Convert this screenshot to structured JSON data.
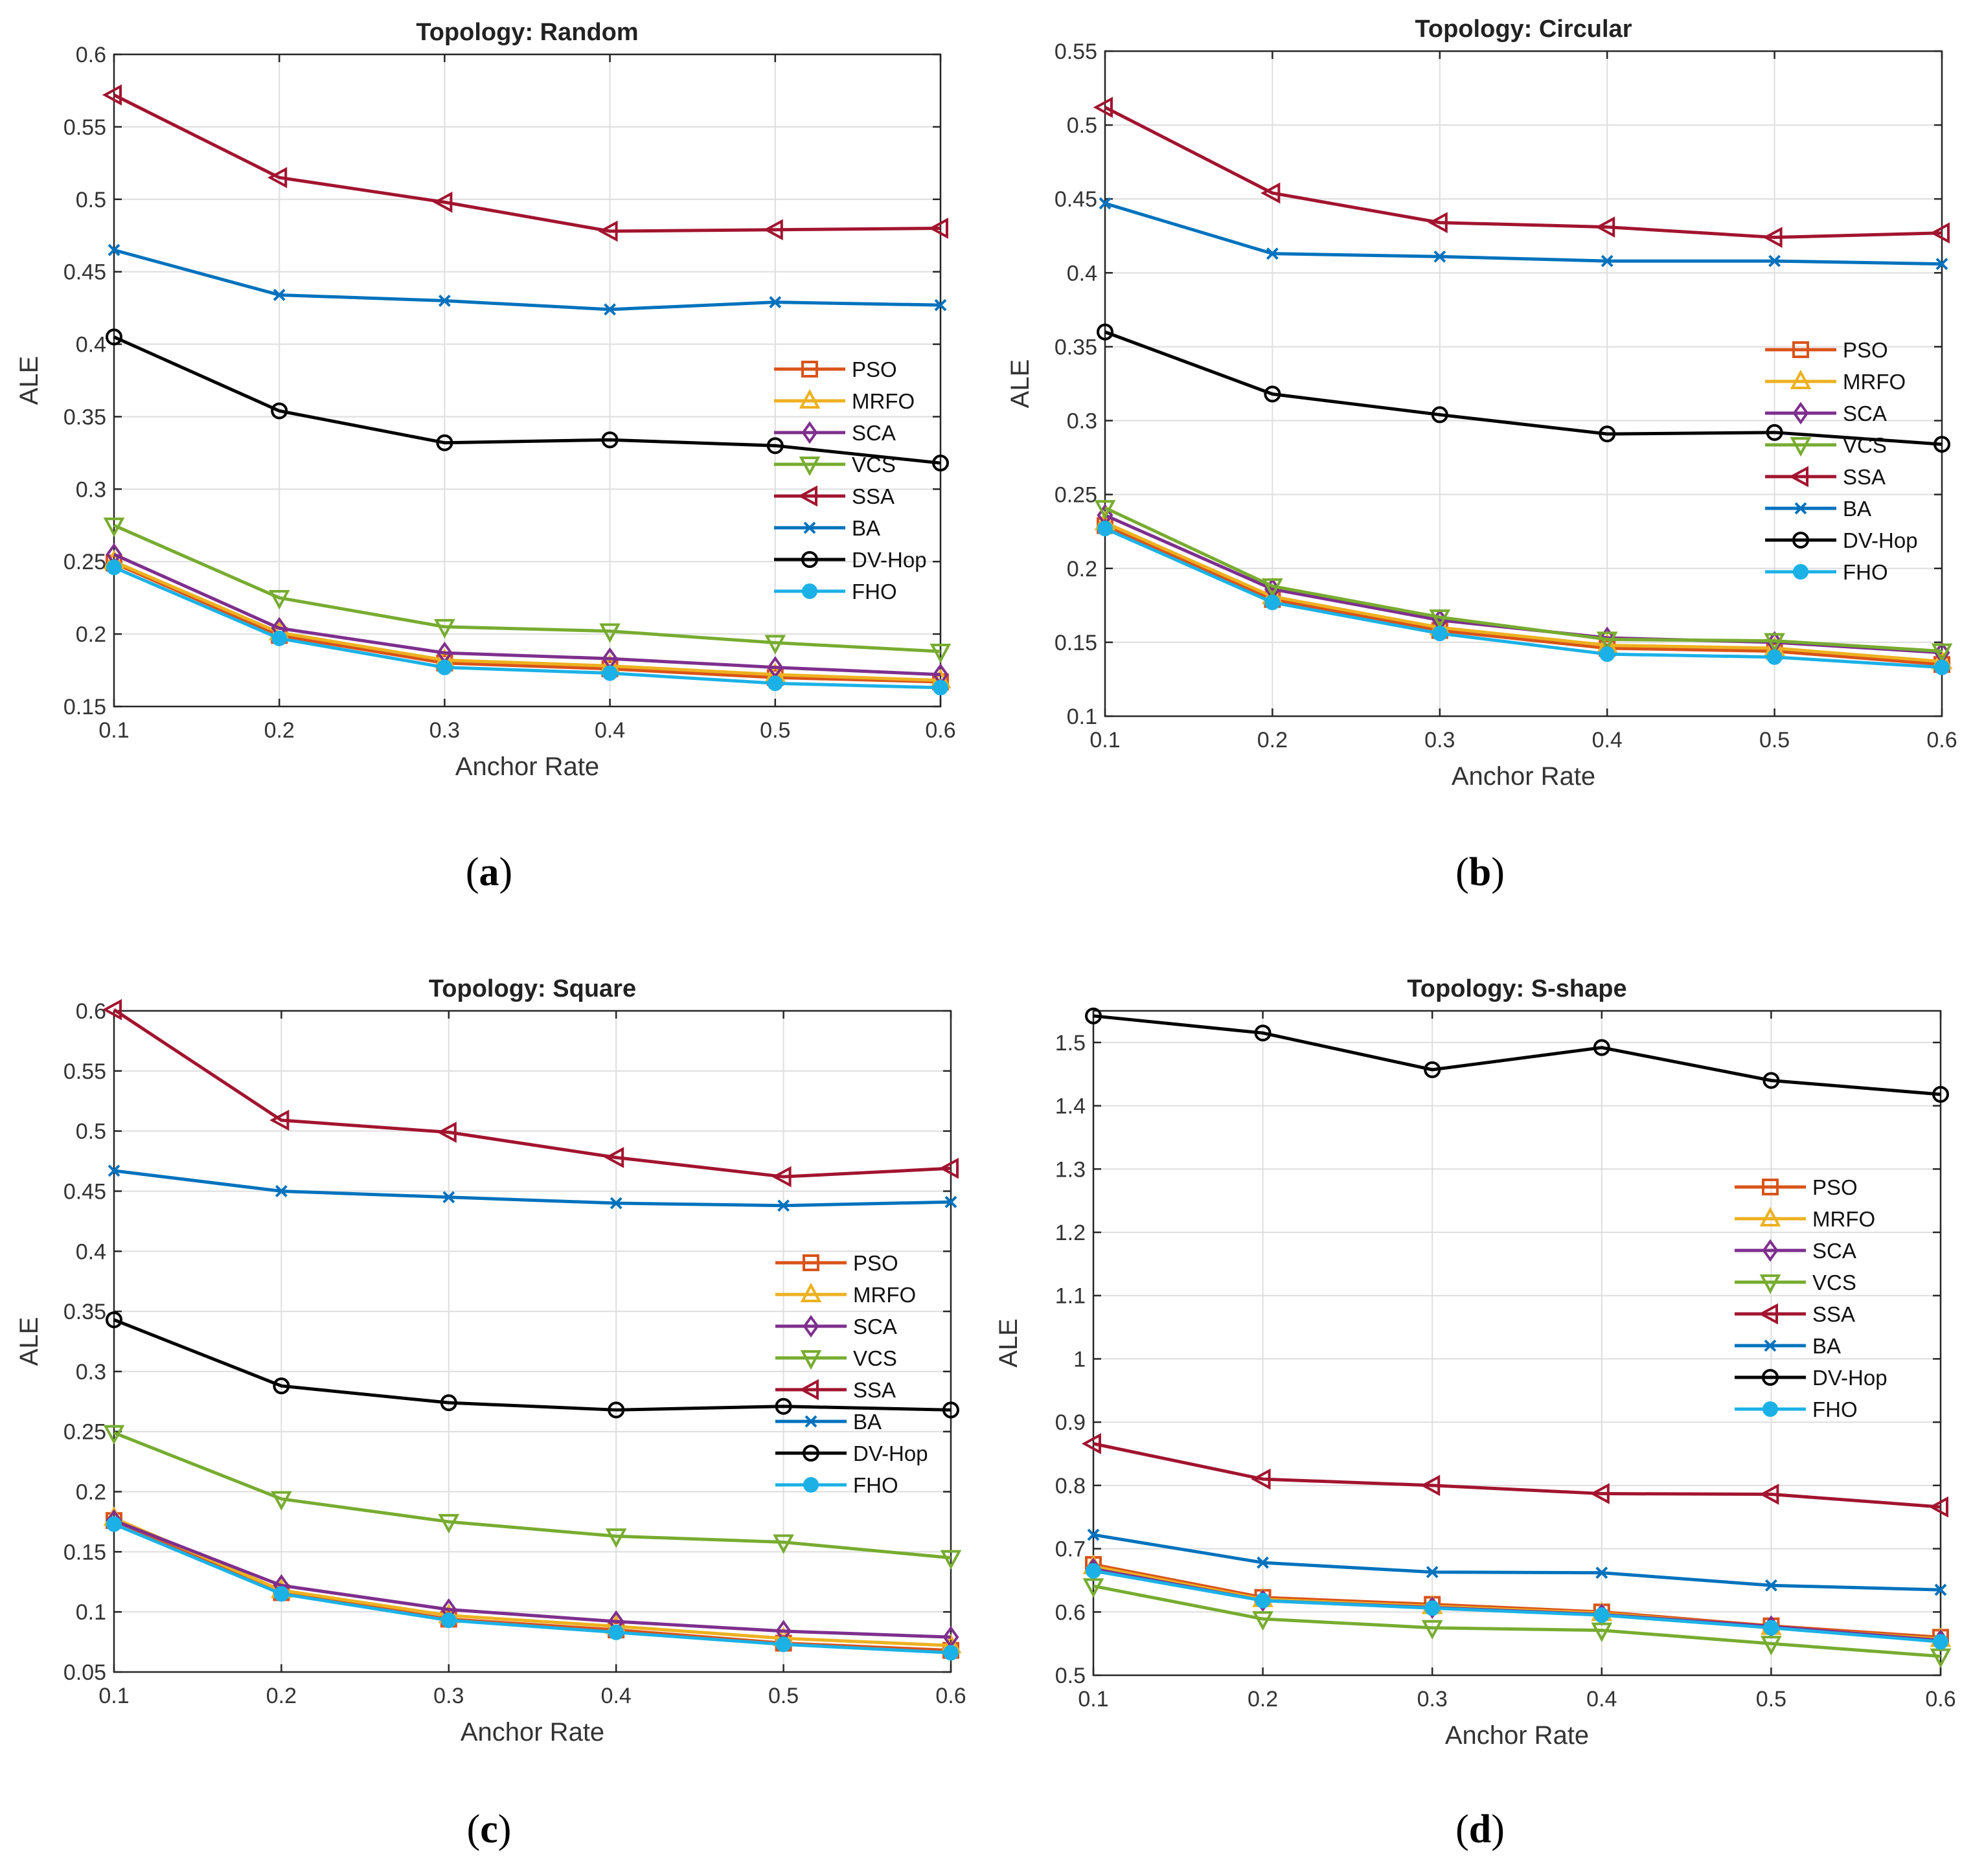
{
  "figure": {
    "subplot_labels": [
      "a",
      "b",
      "c",
      "d"
    ]
  },
  "chart_data": [
    {
      "type": "line",
      "title": "Topology: Random",
      "xlabel": "Anchor Rate",
      "ylabel": "ALE",
      "x": [
        0.1,
        0.2,
        0.3,
        0.4,
        0.5,
        0.6
      ],
      "xticks": [
        "0.1",
        "0.2",
        "0.3",
        "0.4",
        "0.5",
        "0.6"
      ],
      "xlim": [
        0.1,
        0.6
      ],
      "ylim": [
        0.15,
        0.6
      ],
      "yticks": [
        "0.15",
        "0.2",
        "0.25",
        "0.3",
        "0.35",
        "0.4",
        "0.45",
        "0.5",
        "0.55",
        "0.6"
      ],
      "grid": true,
      "legend_position": "center-right",
      "series": [
        {
          "name": "PSO",
          "color": "#D95319",
          "marker": "square",
          "values": [
            0.249,
            0.199,
            0.18,
            0.176,
            0.17,
            0.167
          ]
        },
        {
          "name": "MRFO",
          "color": "#EDB120",
          "marker": "triangle-up",
          "values": [
            0.25,
            0.201,
            0.182,
            0.178,
            0.172,
            0.168
          ]
        },
        {
          "name": "SCA",
          "color": "#7E2F8E",
          "marker": "diamond",
          "values": [
            0.255,
            0.204,
            0.187,
            0.183,
            0.177,
            0.172
          ]
        },
        {
          "name": "VCS",
          "color": "#77AC30",
          "marker": "triangle-down",
          "values": [
            0.275,
            0.225,
            0.205,
            0.202,
            0.194,
            0.188
          ]
        },
        {
          "name": "SSA",
          "color": "#A2142F",
          "marker": "triangle-left",
          "values": [
            0.572,
            0.515,
            0.498,
            0.478,
            0.479,
            0.48
          ]
        },
        {
          "name": "BA",
          "color": "#0072BD",
          "marker": "x",
          "values": [
            0.465,
            0.434,
            0.43,
            0.424,
            0.429,
            0.427
          ]
        },
        {
          "name": "DV-Hop",
          "color": "#000000",
          "marker": "circle",
          "values": [
            0.405,
            0.354,
            0.332,
            0.334,
            0.33,
            0.318
          ]
        },
        {
          "name": "FHO",
          "color": "#1BB1E6",
          "marker": "dot",
          "values": [
            0.246,
            0.197,
            0.177,
            0.173,
            0.166,
            0.163
          ]
        }
      ]
    },
    {
      "type": "line",
      "title": "Topology: Circular",
      "xlabel": "Anchor Rate",
      "ylabel": "ALE",
      "x": [
        0.1,
        0.2,
        0.3,
        0.4,
        0.5,
        0.6
      ],
      "xticks": [
        "0.1",
        "0.2",
        "0.3",
        "0.4",
        "0.5",
        "0.6"
      ],
      "xlim": [
        0.1,
        0.6
      ],
      "ylim": [
        0.1,
        0.55
      ],
      "yticks": [
        "0.1",
        "0.15",
        "0.2",
        "0.25",
        "0.3",
        "0.35",
        "0.4",
        "0.45",
        "0.5",
        "0.55"
      ],
      "grid": true,
      "legend_position": "center-right",
      "series": [
        {
          "name": "PSO",
          "color": "#D95319",
          "marker": "square",
          "values": [
            0.229,
            0.179,
            0.158,
            0.146,
            0.144,
            0.135
          ]
        },
        {
          "name": "MRFO",
          "color": "#EDB120",
          "marker": "triangle-up",
          "values": [
            0.231,
            0.181,
            0.16,
            0.148,
            0.146,
            0.137
          ]
        },
        {
          "name": "SCA",
          "color": "#7E2F8E",
          "marker": "diamond",
          "values": [
            0.236,
            0.186,
            0.165,
            0.153,
            0.15,
            0.143
          ]
        },
        {
          "name": "VCS",
          "color": "#77AC30",
          "marker": "triangle-down",
          "values": [
            0.241,
            0.188,
            0.167,
            0.152,
            0.151,
            0.144
          ]
        },
        {
          "name": "SSA",
          "color": "#A2142F",
          "marker": "triangle-left",
          "values": [
            0.512,
            0.454,
            0.434,
            0.431,
            0.424,
            0.427
          ]
        },
        {
          "name": "BA",
          "color": "#0072BD",
          "marker": "x",
          "values": [
            0.447,
            0.413,
            0.411,
            0.408,
            0.408,
            0.406
          ]
        },
        {
          "name": "DV-Hop",
          "color": "#000000",
          "marker": "circle",
          "values": [
            0.36,
            0.318,
            0.304,
            0.291,
            0.292,
            0.284
          ]
        },
        {
          "name": "FHO",
          "color": "#1BB1E6",
          "marker": "dot",
          "values": [
            0.227,
            0.177,
            0.156,
            0.142,
            0.14,
            0.133
          ]
        }
      ]
    },
    {
      "type": "line",
      "title": "Topology: Square",
      "xlabel": "Anchor Rate",
      "ylabel": "ALE",
      "x": [
        0.1,
        0.2,
        0.3,
        0.4,
        0.5,
        0.6
      ],
      "xticks": [
        "0.1",
        "0.2",
        "0.3",
        "0.4",
        "0.5",
        "0.6"
      ],
      "xlim": [
        0.1,
        0.6
      ],
      "ylim": [
        0.05,
        0.6
      ],
      "yticks": [
        "0.05",
        "0.1",
        "0.15",
        "0.2",
        "0.25",
        "0.3",
        "0.35",
        "0.4",
        "0.45",
        "0.5",
        "0.55",
        "0.6"
      ],
      "grid": true,
      "legend_position": "center-right",
      "series": [
        {
          "name": "PSO",
          "color": "#D95319",
          "marker": "square",
          "values": [
            0.176,
            0.116,
            0.094,
            0.085,
            0.074,
            0.068
          ]
        },
        {
          "name": "MRFO",
          "color": "#EDB120",
          "marker": "triangle-up",
          "values": [
            0.178,
            0.118,
            0.097,
            0.088,
            0.078,
            0.072
          ]
        },
        {
          "name": "SCA",
          "color": "#7E2F8E",
          "marker": "diamond",
          "values": [
            0.176,
            0.122,
            0.102,
            0.092,
            0.084,
            0.079
          ]
        },
        {
          "name": "VCS",
          "color": "#77AC30",
          "marker": "triangle-down",
          "values": [
            0.249,
            0.194,
            0.175,
            0.163,
            0.158,
            0.145
          ]
        },
        {
          "name": "SSA",
          "color": "#A2142F",
          "marker": "triangle-left",
          "values": [
            0.601,
            0.509,
            0.499,
            0.478,
            0.462,
            0.469
          ]
        },
        {
          "name": "BA",
          "color": "#0072BD",
          "marker": "x",
          "values": [
            0.467,
            0.45,
            0.445,
            0.44,
            0.438,
            0.441
          ]
        },
        {
          "name": "DV-Hop",
          "color": "#000000",
          "marker": "circle",
          "values": [
            0.343,
            0.288,
            0.274,
            0.268,
            0.271,
            0.268
          ]
        },
        {
          "name": "FHO",
          "color": "#1BB1E6",
          "marker": "dot",
          "values": [
            0.173,
            0.115,
            0.093,
            0.083,
            0.073,
            0.066
          ]
        }
      ]
    },
    {
      "type": "line",
      "title": "Topology: S-shape",
      "xlabel": "Anchor Rate",
      "ylabel": "ALE",
      "x": [
        0.1,
        0.2,
        0.3,
        0.4,
        0.5,
        0.6
      ],
      "xticks": [
        "0.1",
        "0.2",
        "0.3",
        "0.4",
        "0.5",
        "0.6"
      ],
      "xlim": [
        0.1,
        0.6
      ],
      "ylim": [
        0.5,
        1.55
      ],
      "yticks": [
        "0.5",
        "0.6",
        "0.7",
        "0.8",
        "0.9",
        "1",
        "1.1",
        "1.2",
        "1.3",
        "1.4",
        "1.5"
      ],
      "grid": true,
      "legend_position": "center-right",
      "series": [
        {
          "name": "PSO",
          "color": "#D95319",
          "marker": "square",
          "values": [
            0.675,
            0.623,
            0.612,
            0.6,
            0.578,
            0.56
          ]
        },
        {
          "name": "MRFO",
          "color": "#EDB120",
          "marker": "triangle-up",
          "values": [
            0.672,
            0.62,
            0.609,
            0.598,
            0.576,
            0.557
          ]
        },
        {
          "name": "SCA",
          "color": "#7E2F8E",
          "marker": "diamond",
          "values": [
            0.668,
            0.618,
            0.607,
            0.596,
            0.577,
            0.555
          ]
        },
        {
          "name": "VCS",
          "color": "#77AC30",
          "marker": "triangle-down",
          "values": [
            0.641,
            0.589,
            0.575,
            0.571,
            0.55,
            0.53
          ]
        },
        {
          "name": "SSA",
          "color": "#A2142F",
          "marker": "triangle-left",
          "values": [
            0.866,
            0.81,
            0.8,
            0.787,
            0.786,
            0.766
          ]
        },
        {
          "name": "BA",
          "color": "#0072BD",
          "marker": "x",
          "values": [
            0.722,
            0.678,
            0.663,
            0.662,
            0.642,
            0.635
          ]
        },
        {
          "name": "DV-Hop",
          "color": "#000000",
          "marker": "circle",
          "values": [
            1.542,
            1.515,
            1.457,
            1.492,
            1.44,
            1.418
          ]
        },
        {
          "name": "FHO",
          "color": "#1BB1E6",
          "marker": "dot",
          "values": [
            0.665,
            0.618,
            0.606,
            0.595,
            0.575,
            0.553
          ]
        }
      ]
    }
  ]
}
